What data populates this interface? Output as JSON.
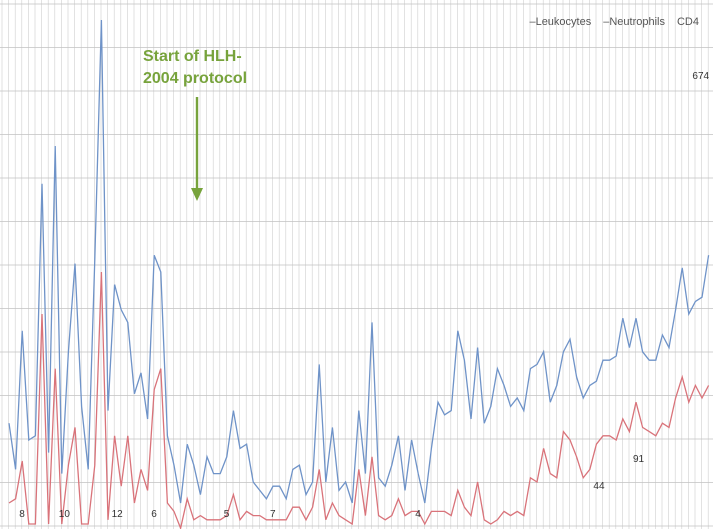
{
  "legend": {
    "leukocytes": "–Leukocytes",
    "neutrophils": "–Neutrophils",
    "cd4": "CD4"
  },
  "annotation": {
    "line1": "Start of HLH-",
    "line2": "2004 protocol",
    "color": "#77a33c"
  },
  "colors": {
    "leukocytes": "#6f93c8",
    "neutrophils": "#d9737a",
    "grid": "#cfcfcf"
  },
  "cd4_labels": [
    {
      "x": 2,
      "text": "8"
    },
    {
      "x": 8,
      "text": "10"
    },
    {
      "x": 16,
      "text": "12"
    },
    {
      "x": 22,
      "text": "6"
    },
    {
      "x": 33,
      "text": "5"
    },
    {
      "x": 40,
      "text": "7"
    },
    {
      "x": 62,
      "text": "4"
    },
    {
      "x": 89,
      "text": "44"
    },
    {
      "x": 95,
      "text": "91"
    },
    {
      "x": 104,
      "text": "674"
    }
  ],
  "chart_data": {
    "type": "line",
    "x": [
      0,
      1,
      2,
      3,
      4,
      5,
      6,
      7,
      8,
      9,
      10,
      11,
      12,
      13,
      14,
      15,
      16,
      17,
      18,
      19,
      20,
      21,
      22,
      23,
      24,
      25,
      26,
      27,
      28,
      29,
      30,
      31,
      32,
      33,
      34,
      35,
      36,
      37,
      38,
      39,
      40,
      41,
      42,
      43,
      44,
      45,
      46,
      47,
      48,
      49,
      50,
      51,
      52,
      53,
      54,
      55,
      56,
      57,
      58,
      59,
      60,
      61,
      62,
      63,
      64,
      65,
      66,
      67,
      68,
      69,
      70,
      71,
      72,
      73,
      74,
      75,
      76,
      77,
      78,
      79,
      80,
      81,
      82,
      83,
      84,
      85,
      86,
      87,
      88,
      89,
      90,
      91,
      92,
      93,
      94,
      95,
      96,
      97,
      98,
      99,
      100,
      101,
      102,
      103,
      104,
      105,
      106
    ],
    "series": [
      {
        "name": "–Leukocytes",
        "values": [
          19.0,
          8.0,
          41.0,
          15.0,
          16.0,
          76.0,
          12.0,
          85.0,
          7.0,
          36.0,
          57.0,
          23.0,
          8.0,
          58.0,
          115.0,
          22.0,
          52.0,
          46.0,
          43.0,
          26.0,
          31.0,
          20.0,
          59.0,
          55.0,
          16.0,
          9.0,
          0.0,
          14.0,
          9.0,
          2.0,
          11.0,
          7.0,
          7.0,
          11.0,
          22.0,
          13.0,
          14.0,
          5.0,
          3.0,
          1.0,
          4.0,
          4.0,
          1.0,
          8.0,
          9.0,
          2.0,
          5.0,
          33.0,
          5.0,
          18.0,
          3.0,
          5.0,
          0.0,
          22.0,
          7.0,
          43.0,
          6.0,
          4.0,
          9.0,
          16.0,
          3.0,
          15.0,
          7.0,
          0.0,
          13.0,
          24.0,
          21.0,
          22.0,
          41.0,
          34.0,
          20.0,
          37.0,
          19.0,
          23.0,
          32.0,
          28.0,
          23.0,
          25.0,
          22.0,
          32.0,
          33.0,
          36.0,
          24.0,
          28.0,
          36.0,
          39.0,
          30.0,
          25.0,
          28.0,
          29.0,
          34.0,
          34.0,
          35.0,
          44.0,
          37.0,
          44.0,
          36.0,
          34.0,
          34.0,
          40.0,
          37.0,
          46.0,
          56.0,
          45.0,
          48.0,
          49.0,
          59.0
        ]
      },
      {
        "name": "–Neutrophils",
        "values": [
          0.0,
          1.0,
          10.0,
          -5.0,
          -5.0,
          45.0,
          -5.0,
          32.0,
          -5.0,
          9.0,
          18.0,
          -5.0,
          -5.0,
          9.0,
          55.0,
          -4.0,
          16.0,
          4.0,
          16.0,
          0.0,
          8.0,
          3.0,
          27.0,
          32.0,
          0.0,
          -2.0,
          -6.0,
          1.0,
          -4.0,
          -3.0,
          -4.0,
          -4.0,
          -4.0,
          -3.0,
          2.0,
          -4.0,
          -2.0,
          -3.0,
          -3.0,
          -4.0,
          -4.0,
          -4.0,
          -4.0,
          -1.0,
          -1.0,
          -4.0,
          -1.0,
          8.0,
          -4.0,
          0.0,
          -3.0,
          -4.0,
          -5.0,
          8.0,
          -3.0,
          11.0,
          -3.0,
          -4.0,
          -3.0,
          1.0,
          -3.0,
          -2.0,
          -2.0,
          -5.0,
          -2.0,
          -2.0,
          -2.0,
          -3.0,
          3.0,
          -1.0,
          -3.0,
          5.0,
          -4.0,
          -5.0,
          -4.0,
          -2.0,
          -3.0,
          -2.0,
          -3.0,
          6.0,
          5.0,
          13.0,
          7.0,
          6.0,
          17.0,
          15.0,
          11.0,
          6.0,
          8.0,
          14.0,
          16.0,
          16.0,
          15.0,
          20.0,
          17.0,
          24.0,
          18.0,
          17.0,
          16.0,
          19.0,
          18.0,
          25.0,
          30.0,
          24.0,
          28.0,
          25.0,
          28.0
        ]
      }
    ],
    "title": "",
    "xlabel": "",
    "ylabel": "",
    "grid": "on",
    "legend_position": "top-right"
  }
}
